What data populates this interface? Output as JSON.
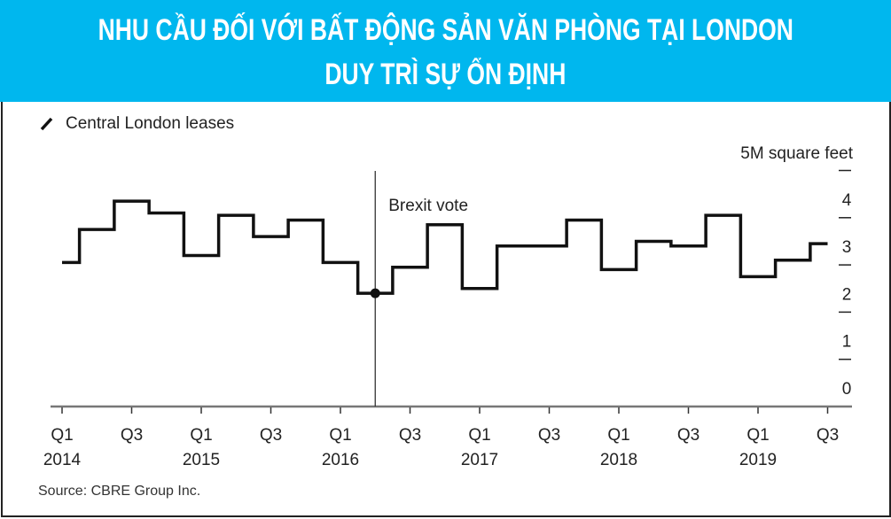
{
  "header": {
    "title_line1": "NHU CẦU ĐỐI VỚI BẤT ĐỘNG SẢN VĂN PHÒNG TẠI LONDON",
    "title_line2": "DUY TRÌ SỰ ỔN ĐỊNH",
    "background_color": "#00b7ee"
  },
  "chart_data": {
    "type": "line",
    "step": true,
    "legend": [
      "Central London leases"
    ],
    "legend_placement": "top-left",
    "ylabel": "5M square feet",
    "ylim": [
      0,
      5
    ],
    "yticks": [
      "0",
      "1",
      "2",
      "3",
      "4"
    ],
    "x": [
      "Q1 2014",
      "Q2 2014",
      "Q3 2014",
      "Q4 2014",
      "Q1 2015",
      "Q2 2015",
      "Q3 2015",
      "Q4 2015",
      "Q1 2016",
      "Q2 2016",
      "Q3 2016",
      "Q4 2016",
      "Q1 2017",
      "Q2 2017",
      "Q3 2017",
      "Q4 2017",
      "Q1 2018",
      "Q2 2018",
      "Q3 2018",
      "Q4 2018",
      "Q1 2019",
      "Q2 2019",
      "Q3 2019"
    ],
    "xtick_labels": [
      {
        "q": "Q1",
        "year": "2014"
      },
      {
        "q": "Q3",
        "year": ""
      },
      {
        "q": "Q1",
        "year": "2015"
      },
      {
        "q": "Q3",
        "year": ""
      },
      {
        "q": "Q1",
        "year": "2016"
      },
      {
        "q": "Q3",
        "year": ""
      },
      {
        "q": "Q1",
        "year": "2017"
      },
      {
        "q": "Q3",
        "year": ""
      },
      {
        "q": "Q1",
        "year": "2018"
      },
      {
        "q": "Q3",
        "year": ""
      },
      {
        "q": "Q1",
        "year": "2019"
      },
      {
        "q": "Q3",
        "year": ""
      }
    ],
    "series": [
      {
        "name": "Central London leases",
        "values": [
          3.05,
          3.75,
          4.35,
          4.1,
          3.2,
          4.05,
          3.6,
          3.95,
          3.05,
          2.4,
          2.95,
          3.85,
          2.5,
          3.4,
          3.4,
          3.95,
          2.9,
          3.5,
          3.4,
          4.05,
          2.75,
          3.1,
          3.45
        ]
      }
    ],
    "annotations": [
      {
        "text": "Brexit vote",
        "x": "Q2 2016"
      }
    ],
    "grid": false
  },
  "source": "Source: CBRE Group Inc."
}
